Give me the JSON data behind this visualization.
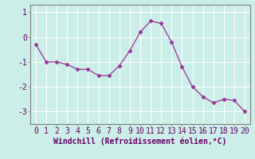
{
  "x": [
    0,
    1,
    2,
    3,
    4,
    5,
    6,
    7,
    8,
    9,
    10,
    11,
    12,
    13,
    14,
    15,
    16,
    17,
    18,
    19,
    20
  ],
  "y": [
    -0.3,
    -1.0,
    -1.0,
    -1.1,
    -1.3,
    -1.3,
    -1.55,
    -1.55,
    -1.15,
    -0.55,
    0.2,
    0.65,
    0.55,
    -0.2,
    -1.2,
    -2.0,
    -2.4,
    -2.65,
    -2.5,
    -2.55,
    -3.0
  ],
  "line_color": "#993399",
  "marker": "D",
  "markersize": 2.5,
  "linewidth": 0.9,
  "xlabel": "Windchill (Refroidissement éolien,°C)",
  "xlabel_fontsize": 7,
  "bg_color": "#cceee8",
  "grid_color": "#b0d8d0",
  "tick_label_fontsize": 7,
  "xlim": [
    -0.5,
    20.5
  ],
  "ylim": [
    -3.5,
    1.3
  ],
  "yticks": [
    -3,
    -2,
    -1,
    0,
    1
  ],
  "xticks": [
    0,
    1,
    2,
    3,
    4,
    5,
    6,
    7,
    8,
    9,
    10,
    11,
    12,
    13,
    14,
    15,
    16,
    17,
    18,
    19,
    20
  ],
  "spine_color": "#808080",
  "spine_linewidth": 0.8
}
